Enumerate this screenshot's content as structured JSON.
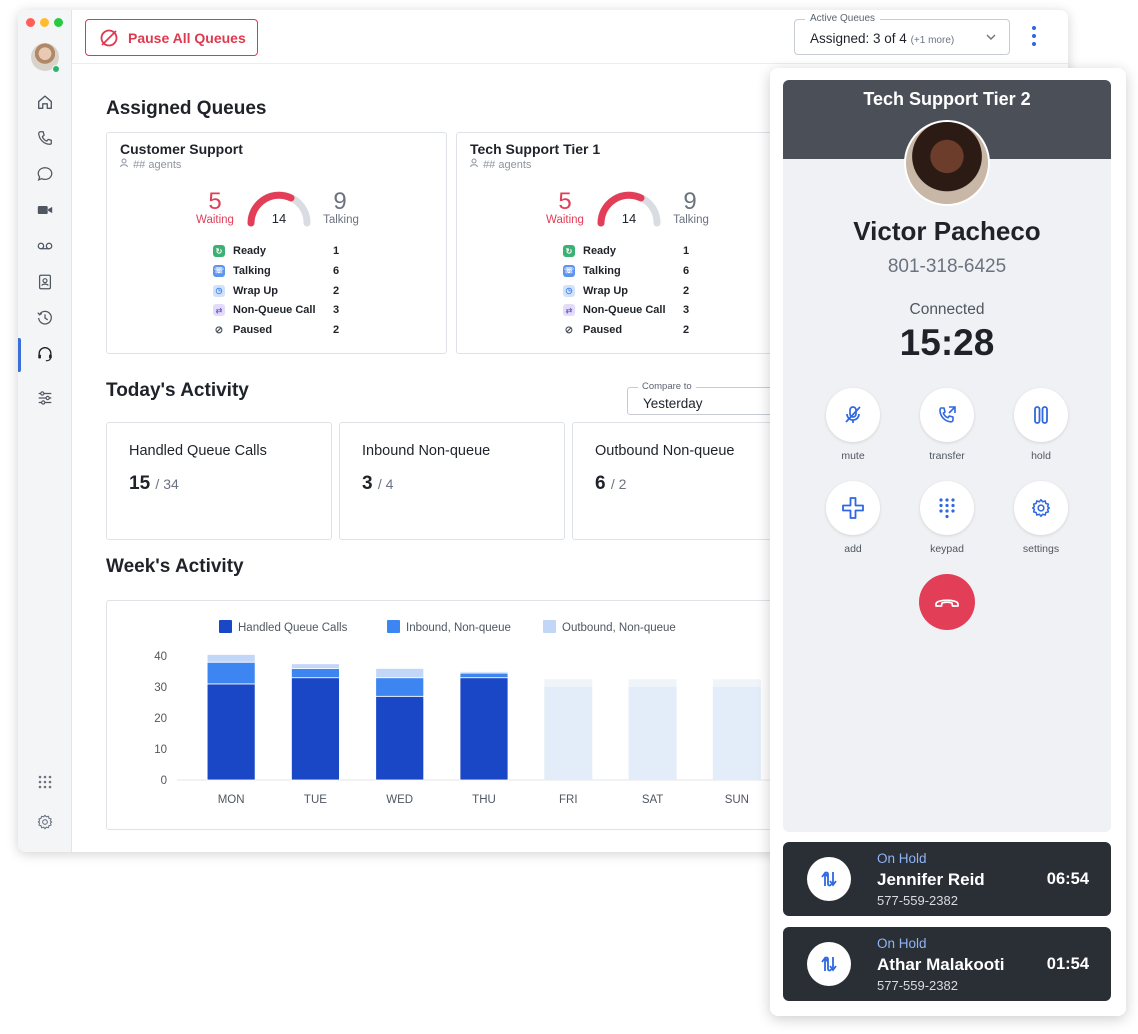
{
  "topbar": {
    "pause_label": "Pause All Queues",
    "active_queues_legend": "Active Queues",
    "active_queues_value": "Assigned: 3 of 4",
    "active_queues_more": "(+1 more)"
  },
  "sections": {
    "assigned_title": "Assigned Queues",
    "today_title": "Today's Activity",
    "week_title": "Week's Activity",
    "compare_legend": "Compare to",
    "compare_value": "Yesterday"
  },
  "queues": [
    {
      "name": "Customer Support",
      "agents": "## agents",
      "waiting": "5",
      "waiting_label": "Waiting",
      "gauge_value": "14",
      "talking": "9",
      "talking_label": "Talking",
      "stats": [
        {
          "label": "Ready",
          "count": "1"
        },
        {
          "label": "Talking",
          "count": "6"
        },
        {
          "label": "Wrap Up",
          "count": "2"
        },
        {
          "label": "Non-Queue Call",
          "count": "3"
        },
        {
          "label": "Paused",
          "count": "2"
        }
      ]
    },
    {
      "name": "Tech Support Tier 1",
      "agents": "## agents",
      "waiting": "5",
      "waiting_label": "Waiting",
      "gauge_value": "14",
      "talking": "9",
      "talking_label": "Talking",
      "stats": [
        {
          "label": "Ready",
          "count": "1"
        },
        {
          "label": "Talking",
          "count": "6"
        },
        {
          "label": "Wrap Up",
          "count": "2"
        },
        {
          "label": "Non-Queue Call",
          "count": "3"
        },
        {
          "label": "Paused",
          "count": "2"
        }
      ]
    }
  ],
  "today": [
    {
      "title": "Handled Queue Calls",
      "value": "15",
      "total": "/ 34"
    },
    {
      "title": "Inbound Non-queue",
      "value": "3",
      "total": "/ 4"
    },
    {
      "title": "Outbound Non-queue",
      "value": "6",
      "total": "/ 2"
    }
  ],
  "chart_data": {
    "type": "bar",
    "stacked": true,
    "categories": [
      "MON",
      "TUE",
      "WED",
      "THU",
      "FRI",
      "SAT",
      "SUN"
    ],
    "series": [
      {
        "name": "Handled Queue Calls",
        "color": "#1a47c6",
        "values": [
          31,
          33,
          27,
          33,
          0,
          0,
          0
        ]
      },
      {
        "name": "Inbound, Non-queue",
        "color": "#3d85f0",
        "values": [
          7,
          3,
          6,
          1.5,
          0,
          0,
          0
        ]
      },
      {
        "name": "Outbound, Non-queue",
        "color": "#c2d7f7",
        "values": [
          2.5,
          1.5,
          3,
          0.5,
          0,
          0,
          0
        ]
      }
    ],
    "projected": {
      "color": "#e3ecf9",
      "values": [
        0,
        0,
        0,
        0,
        30,
        30,
        30
      ],
      "cap_values": [
        2.5,
        2.5,
        2.5
      ]
    },
    "yticks": [
      "0",
      "10",
      "20",
      "30",
      "40"
    ],
    "ylim": [
      0,
      40
    ],
    "legend_position": "top",
    "grid": false
  },
  "call": {
    "queue_name": "Tech Support Tier 2",
    "caller_name": "Victor Pacheco",
    "caller_phone": "801-318-6425",
    "status": "Connected",
    "timer": "15:28",
    "controls": [
      {
        "label": "mute",
        "icon": "mute-icon"
      },
      {
        "label": "transfer",
        "icon": "transfer-icon"
      },
      {
        "label": "hold",
        "icon": "hold-icon"
      },
      {
        "label": "add",
        "icon": "add-icon"
      },
      {
        "label": "keypad",
        "icon": "keypad-icon"
      },
      {
        "label": "settings",
        "icon": "settings-icon"
      }
    ],
    "accent": "#2f68e0",
    "hangup_color": "#e23e57"
  },
  "on_hold": [
    {
      "status": "On Hold",
      "name": "Jennifer Reid",
      "phone": "577-559-2382",
      "time": "06:54"
    },
    {
      "status": "On Hold",
      "name": "Athar Malakooti",
      "phone": "577-559-2382",
      "time": "01:54"
    }
  ]
}
